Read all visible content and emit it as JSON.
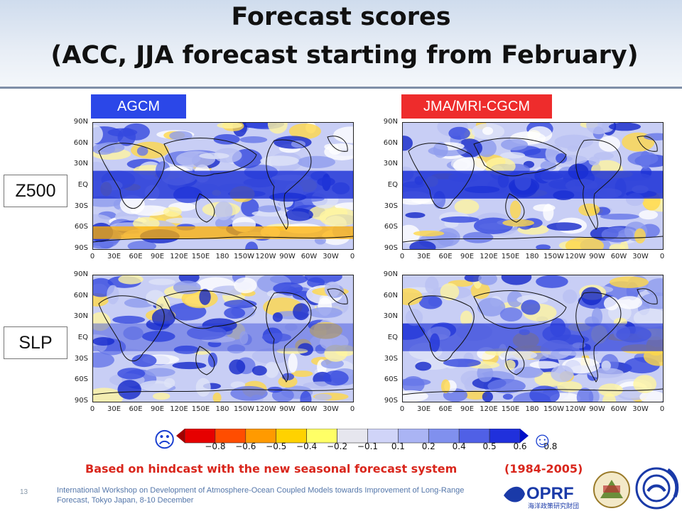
{
  "title": {
    "line1": "Forecast scores",
    "line2": "(ACC, JJA forecast starting from February)"
  },
  "columns": {
    "left": "AGCM",
    "right": "JMA/MRI-CGCM"
  },
  "rows": {
    "top": "Z500",
    "bottom": "SLP"
  },
  "map_axes": {
    "lat_ticks": [
      "90N",
      "60N",
      "30N",
      "EQ",
      "30S",
      "60S",
      "90S"
    ],
    "lon_ticks": [
      "0",
      "30E",
      "60E",
      "90E",
      "120E",
      "150E",
      "180",
      "150W",
      "120W",
      "90W",
      "60W",
      "30W",
      "0"
    ]
  },
  "colorbar": {
    "labels": [
      "−0.8",
      "−0.6",
      "−0.5",
      "−0.4",
      "−0.2",
      "−0.1",
      "0.1",
      "0.2",
      "0.4",
      "0.5",
      "0.6",
      "0.8"
    ],
    "colors": [
      "#a30000",
      "#e60000",
      "#ff4d00",
      "#ff9a00",
      "#ffd200",
      "#ffff66",
      "#e6e6ee",
      "#d0d4f8",
      "#aab4f4",
      "#8090ee",
      "#5060e6",
      "#2030dc",
      "#0010c8"
    ],
    "left_icon": "sad-face-icon",
    "right_icon": "happy-face-icon",
    "left_glyph": "☹",
    "right_glyph": "☺"
  },
  "note": {
    "text": "Based on hindcast with the new seasonal forecast system",
    "period": "(1984-2005)"
  },
  "page_number": "13",
  "footer": "International Workshop on Development of Atmosphere-Ocean Coupled Models towards Improvement of Long-Range Forecast, Tokyo Japan, 8-10 December",
  "logos": {
    "oprf": "OPRF",
    "oprf_sub": "海洋政策研究財団"
  }
}
